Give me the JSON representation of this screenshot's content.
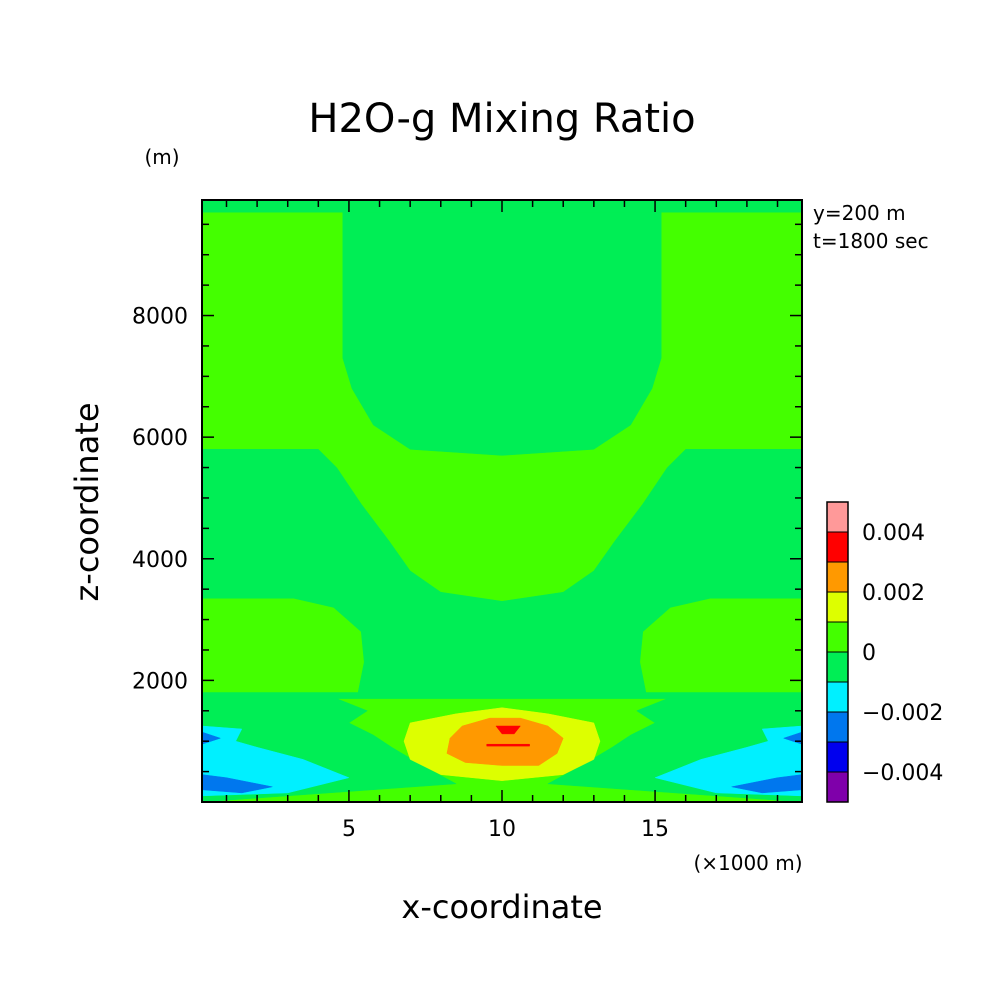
{
  "chart_data": {
    "type": "heatmap",
    "title": "H2O-g Mixing Ratio",
    "xlabel": "x-coordinate",
    "ylabel": "z-coordinate",
    "x_unit": "(×1000 m)",
    "y_unit": "(m)",
    "annotations": [
      "y=200 m",
      "t=1800 sec"
    ],
    "xlim": [
      0.2,
      19.8
    ],
    "ylim": [
      0,
      9900
    ],
    "x_ticks": [
      5,
      10,
      15
    ],
    "x_tick_labels": [
      "5",
      "10",
      "15"
    ],
    "y_ticks": [
      2000,
      4000,
      6000,
      8000
    ],
    "y_tick_labels": [
      "2000",
      "4000",
      "6000",
      "8000"
    ],
    "colorbar": {
      "levels": [
        -0.005,
        -0.004,
        -0.003,
        -0.002,
        -0.001,
        0,
        0.001,
        0.002,
        0.003,
        0.004,
        0.005
      ],
      "colors": [
        "#7f00aa",
        "#0000ee",
        "#0077ee",
        "#00f0ff",
        "#00ee55",
        "#44ff00",
        "#ddff00",
        "#ff9900",
        "#ff0000",
        "#ff9999"
      ],
      "tick_values": [
        -0.004,
        -0.002,
        0,
        0.002,
        0.004
      ],
      "tick_labels": [
        "−0.004",
        "−0.002",
        "0",
        "0.002",
        "0.004"
      ]
    },
    "contour_regions": [
      {
        "name": "green-background",
        "level_range": [
          0,
          0.001
        ],
        "color": "#44ff00"
      },
      {
        "name": "upper-dome",
        "level_range": [
          -0.001,
          0
        ],
        "color": "#00ee55",
        "points": [
          [
            4.8,
            9700
          ],
          [
            15.2,
            9700
          ],
          [
            15.2,
            7300
          ],
          [
            14.9,
            6800
          ],
          [
            14.2,
            6200
          ],
          [
            13.0,
            5800
          ],
          [
            10.0,
            5700
          ],
          [
            7.0,
            5800
          ],
          [
            5.8,
            6200
          ],
          [
            5.1,
            6800
          ],
          [
            4.8,
            7300
          ]
        ]
      },
      {
        "name": "top-strip",
        "level_range": [
          -0.001,
          0
        ],
        "color": "#00ee55",
        "points": [
          [
            0.2,
            9900
          ],
          [
            19.8,
            9900
          ],
          [
            19.8,
            9700
          ],
          [
            0.2,
            9700
          ]
        ]
      },
      {
        "name": "mid-band",
        "level_range": [
          -0.001,
          0
        ],
        "color": "#00ee55",
        "points": [
          [
            0.2,
            5800
          ],
          [
            4.0,
            5800
          ],
          [
            4.6,
            5500
          ],
          [
            5.4,
            4900
          ],
          [
            6.3,
            4300
          ],
          [
            7.0,
            3800
          ],
          [
            8.0,
            3450
          ],
          [
            10.0,
            3300
          ],
          [
            12.0,
            3450
          ],
          [
            13.0,
            3800
          ],
          [
            13.7,
            4300
          ],
          [
            14.6,
            4900
          ],
          [
            15.4,
            5500
          ],
          [
            16.0,
            5800
          ],
          [
            19.8,
            5800
          ],
          [
            19.8,
            3350
          ],
          [
            16.8,
            3350
          ],
          [
            15.5,
            3200
          ],
          [
            14.6,
            2800
          ],
          [
            14.5,
            2300
          ],
          [
            14.7,
            1800
          ],
          [
            19.8,
            1800
          ],
          [
            19.8,
            1700
          ],
          [
            0.2,
            1700
          ],
          [
            0.2,
            1800
          ],
          [
            5.3,
            1800
          ],
          [
            5.5,
            2300
          ],
          [
            5.4,
            2800
          ],
          [
            4.5,
            3200
          ],
          [
            3.2,
            3350
          ],
          [
            0.2,
            3350
          ]
        ]
      },
      {
        "name": "low-left-wedge",
        "level_range": [
          -0.001,
          0
        ],
        "color": "#00ee55",
        "points": [
          [
            0.2,
            1700
          ],
          [
            4.6,
            1700
          ],
          [
            5.6,
            1500
          ],
          [
            5.0,
            1300
          ],
          [
            5.8,
            1100
          ],
          [
            6.4,
            900
          ],
          [
            7.4,
            600
          ],
          [
            8.5,
            300
          ],
          [
            0.2,
            0
          ]
        ]
      },
      {
        "name": "low-right-wedge",
        "level_range": [
          -0.001,
          0
        ],
        "color": "#00ee55",
        "points": [
          [
            19.8,
            1700
          ],
          [
            15.4,
            1700
          ],
          [
            14.4,
            1500
          ],
          [
            15.0,
            1300
          ],
          [
            14.2,
            1100
          ],
          [
            13.6,
            900
          ],
          [
            12.6,
            600
          ],
          [
            11.5,
            300
          ],
          [
            19.8,
            0
          ]
        ]
      },
      {
        "name": "left-cyan",
        "level_range": [
          -0.002,
          -0.001
        ],
        "color": "#00f0ff",
        "points": [
          [
            0.2,
            1250
          ],
          [
            1.5,
            1200
          ],
          [
            1.3,
            1000
          ],
          [
            2.0,
            900
          ],
          [
            3.5,
            700
          ],
          [
            5.0,
            400
          ],
          [
            3.0,
            150
          ],
          [
            0.2,
            100
          ]
        ]
      },
      {
        "name": "right-cyan",
        "level_range": [
          -0.002,
          -0.001
        ],
        "color": "#00f0ff",
        "points": [
          [
            19.8,
            1250
          ],
          [
            18.5,
            1200
          ],
          [
            18.7,
            1000
          ],
          [
            18.0,
            900
          ],
          [
            16.5,
            700
          ],
          [
            15.0,
            400
          ],
          [
            17.0,
            150
          ],
          [
            19.8,
            100
          ]
        ]
      },
      {
        "name": "left-blue",
        "level_range": [
          -0.003,
          -0.002
        ],
        "color": "#0077ee",
        "points": [
          [
            0.2,
            1150
          ],
          [
            0.8,
            1050
          ],
          [
            0.2,
            950
          ]
        ]
      },
      {
        "name": "left-blue-low",
        "level_range": [
          -0.003,
          -0.002
        ],
        "color": "#0077ee",
        "points": [
          [
            0.2,
            450
          ],
          [
            1.0,
            400
          ],
          [
            2.5,
            250
          ],
          [
            1.5,
            150
          ],
          [
            0.2,
            200
          ]
        ]
      },
      {
        "name": "right-blue",
        "level_range": [
          -0.003,
          -0.002
        ],
        "color": "#0077ee",
        "points": [
          [
            19.8,
            1150
          ],
          [
            19.2,
            1050
          ],
          [
            19.8,
            950
          ]
        ]
      },
      {
        "name": "right-blue-low",
        "level_range": [
          -0.003,
          -0.002
        ],
        "color": "#0077ee",
        "points": [
          [
            19.8,
            450
          ],
          [
            19.0,
            400
          ],
          [
            17.5,
            250
          ],
          [
            18.5,
            150
          ],
          [
            19.8,
            200
          ]
        ]
      },
      {
        "name": "yellow-blob",
        "level_range": [
          0.001,
          0.002
        ],
        "color": "#ddff00",
        "points": [
          [
            7.0,
            1300
          ],
          [
            8.5,
            1450
          ],
          [
            10.0,
            1550
          ],
          [
            11.5,
            1450
          ],
          [
            13.0,
            1300
          ],
          [
            13.2,
            1000
          ],
          [
            13.0,
            700
          ],
          [
            12.0,
            450
          ],
          [
            10.0,
            350
          ],
          [
            8.0,
            450
          ],
          [
            7.0,
            700
          ],
          [
            6.8,
            1000
          ]
        ]
      },
      {
        "name": "orange-blob",
        "level_range": [
          0.002,
          0.003
        ],
        "color": "#ff9900",
        "points": [
          [
            8.7,
            1250
          ],
          [
            9.6,
            1380
          ],
          [
            10.6,
            1380
          ],
          [
            11.5,
            1250
          ],
          [
            12.0,
            1050
          ],
          [
            11.8,
            800
          ],
          [
            11.2,
            600
          ],
          [
            10.0,
            600
          ],
          [
            8.8,
            650
          ],
          [
            8.2,
            800
          ],
          [
            8.3,
            1050
          ]
        ]
      },
      {
        "name": "red-blob-top",
        "level_range": [
          0.003,
          0.004
        ],
        "color": "#ff0000",
        "points": [
          [
            9.8,
            1250
          ],
          [
            10.6,
            1250
          ],
          [
            10.4,
            1120
          ],
          [
            10.0,
            1120
          ]
        ]
      },
      {
        "name": "red-line",
        "level_range": [
          0.003,
          0.004
        ],
        "color": "#ff0000",
        "points": [
          [
            9.5,
            950
          ],
          [
            10.9,
            950
          ],
          [
            10.9,
            920
          ],
          [
            9.5,
            920
          ]
        ]
      }
    ]
  }
}
